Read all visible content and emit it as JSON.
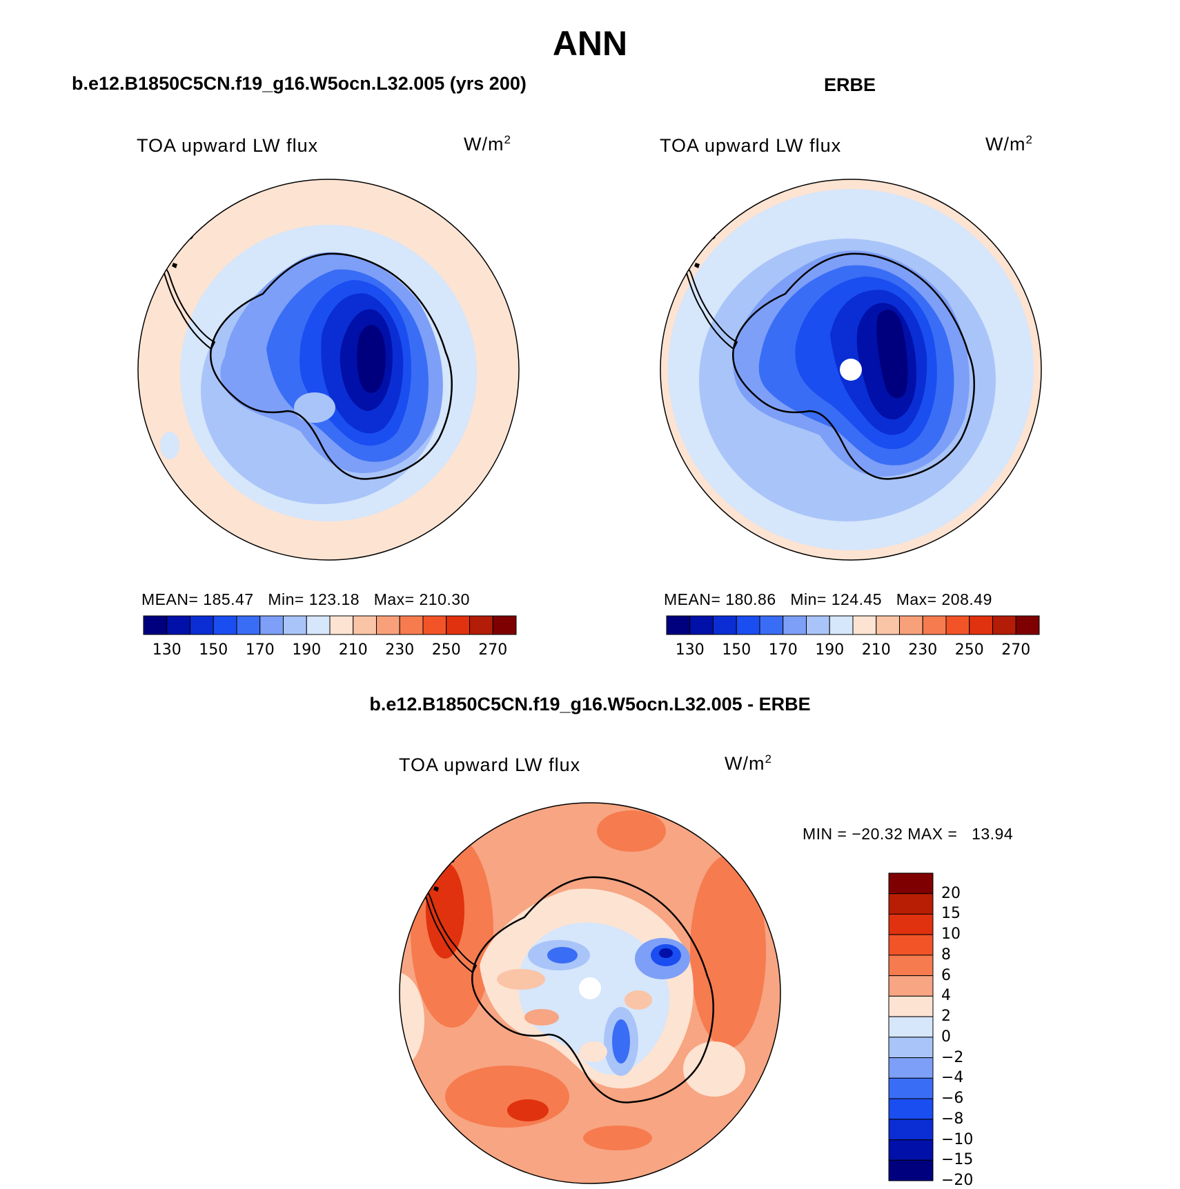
{
  "figure": {
    "main_title": "ANN",
    "panel_left": {
      "case_title": "b.e12.B1850C5CN.f19_g16.W5ocn.L32.005 (yrs 200)",
      "variable": "TOA upward LW flux",
      "units_base": "W/m",
      "units_exp": "2",
      "stats": {
        "mean_label": "MEAN=",
        "mean": "185.47",
        "min_label": "Min=",
        "min": "123.18",
        "max_label": "Max=",
        "max": "210.30"
      }
    },
    "panel_right": {
      "case_title": "ERBE",
      "variable": "TOA upward LW flux",
      "units_base": "W/m",
      "units_exp": "2",
      "stats": {
        "mean_label": "MEAN=",
        "mean": "180.86",
        "min_label": "Min=",
        "min": "124.45",
        "max_label": "Max=",
        "max": "208.49"
      }
    },
    "panel_diff": {
      "case_title": "b.e12.B1850C5CN.f19_g16.W5ocn.L32.005 - ERBE",
      "variable": "TOA upward LW flux",
      "units_base": "W/m",
      "units_exp": "2",
      "minmax": "MIN = −20.32 MAX =   13.94"
    },
    "colorbar_main": {
      "colors": [
        "#00007f",
        "#0010a8",
        "#0a2ed4",
        "#1a4ef0",
        "#3a6df5",
        "#7d9ff7",
        "#a9c4f8",
        "#d6e6fb",
        "#fde3d2",
        "#fac4a6",
        "#f7a07a",
        "#f67b4f",
        "#f25428",
        "#e0320e",
        "#b31c06",
        "#7f0000"
      ],
      "labels": [
        "130",
        "150",
        "170",
        "190",
        "210",
        "230",
        "250",
        "270"
      ]
    },
    "colorbar_diff": {
      "colors": [
        "#7f0000",
        "#b81e04",
        "#e0320e",
        "#f25428",
        "#f67b4f",
        "#f7a582",
        "#fde3d2",
        "#d6e6fb",
        "#a9c4f8",
        "#7d9ff7",
        "#3a6df5",
        "#1a4ef0",
        "#0a2ed4",
        "#0010a8",
        "#00007f"
      ],
      "labels": [
        "20",
        "15",
        "10",
        "8",
        "6",
        "4",
        "2",
        "0",
        "−2",
        "−4",
        "−6",
        "−8",
        "−10",
        "−15",
        "−20"
      ]
    }
  }
}
